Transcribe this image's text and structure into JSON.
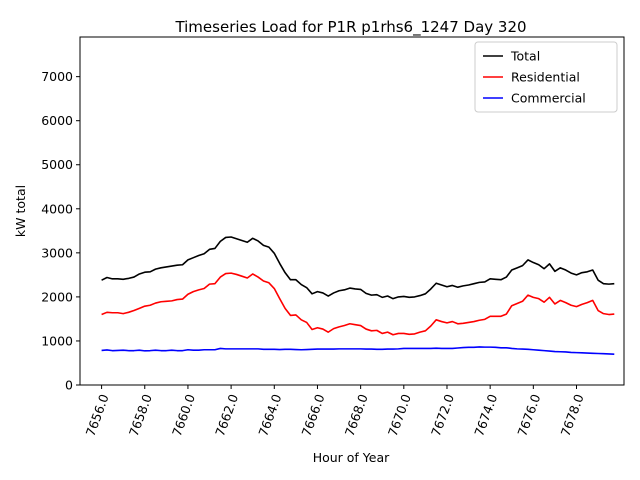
{
  "chart_data": {
    "type": "line",
    "title": "Timeseries Load for P1R p1rhs6_1247  Day 320",
    "xlabel": "Hour of Year",
    "ylabel": "kW total",
    "xlim": [
      7655.0,
      7680.2
    ],
    "ylim": [
      0,
      7900
    ],
    "x_ticks": [
      7656.0,
      7658.0,
      7660.0,
      7662.0,
      7664.0,
      7666.0,
      7668.0,
      7670.0,
      7672.0,
      7674.0,
      7676.0,
      7678.0
    ],
    "x_tick_labels": [
      "7656.0",
      "7658.0",
      "7660.0",
      "7662.0",
      "7664.0",
      "7666.0",
      "7668.0",
      "7670.0",
      "7672.0",
      "7674.0",
      "7676.0",
      "7678.0"
    ],
    "y_ticks": [
      0,
      1000,
      2000,
      3000,
      4000,
      5000,
      6000,
      7000
    ],
    "y_tick_labels": [
      "0",
      "1000",
      "2000",
      "3000",
      "4000",
      "5000",
      "6000",
      "7000"
    ],
    "legend_position": "top-right",
    "x_start": 7656.0,
    "x_step": 0.25,
    "series": [
      {
        "name": "Total",
        "color": "#000000",
        "values": [
          2380,
          2440,
          2410,
          2410,
          2400,
          2420,
          2450,
          2520,
          2560,
          2570,
          2630,
          2660,
          2680,
          2700,
          2720,
          2730,
          2840,
          2890,
          2940,
          2980,
          3080,
          3100,
          3260,
          3350,
          3360,
          3320,
          3280,
          3240,
          3330,
          3270,
          3170,
          3130,
          2990,
          2760,
          2550,
          2390,
          2390,
          2280,
          2210,
          2070,
          2120,
          2090,
          2020,
          2090,
          2140,
          2160,
          2200,
          2180,
          2170,
          2080,
          2040,
          2050,
          1990,
          2020,
          1960,
          2000,
          2010,
          1990,
          2000,
          2030,
          2070,
          2180,
          2310,
          2270,
          2230,
          2260,
          2220,
          2250,
          2270,
          2300,
          2330,
          2340,
          2410,
          2400,
          2390,
          2450,
          2610,
          2660,
          2710,
          2840,
          2780,
          2730,
          2640,
          2750,
          2580,
          2660,
          2610,
          2540,
          2500,
          2550,
          2570,
          2610,
          2380,
          2300,
          2290,
          2300
        ]
      },
      {
        "name": "Residential",
        "color": "#ff0000",
        "values": [
          1600,
          1650,
          1640,
          1640,
          1620,
          1650,
          1690,
          1740,
          1790,
          1810,
          1860,
          1890,
          1900,
          1910,
          1940,
          1950,
          2060,
          2120,
          2160,
          2190,
          2290,
          2300,
          2450,
          2530,
          2540,
          2510,
          2470,
          2430,
          2520,
          2450,
          2360,
          2320,
          2190,
          1960,
          1740,
          1580,
          1590,
          1480,
          1420,
          1260,
          1300,
          1270,
          1200,
          1280,
          1320,
          1350,
          1390,
          1370,
          1350,
          1270,
          1230,
          1240,
          1170,
          1200,
          1140,
          1170,
          1170,
          1150,
          1160,
          1200,
          1230,
          1340,
          1480,
          1440,
          1410,
          1440,
          1390,
          1400,
          1420,
          1440,
          1470,
          1490,
          1560,
          1560,
          1560,
          1610,
          1800,
          1850,
          1900,
          2040,
          1990,
          1960,
          1880,
          1990,
          1840,
          1920,
          1870,
          1810,
          1780,
          1830,
          1870,
          1920,
          1690,
          1620,
          1600,
          1610
        ]
      },
      {
        "name": "Commercial",
        "color": "#0000ff",
        "values": [
          785,
          795,
          780,
          785,
          790,
          780,
          780,
          790,
          775,
          780,
          790,
          780,
          780,
          790,
          780,
          780,
          800,
          790,
          790,
          800,
          800,
          800,
          830,
          820,
          820,
          820,
          820,
          820,
          820,
          820,
          810,
          810,
          810,
          805,
          810,
          810,
          805,
          800,
          805,
          810,
          815,
          815,
          815,
          815,
          820,
          820,
          820,
          820,
          820,
          815,
          815,
          810,
          810,
          815,
          815,
          820,
          830,
          830,
          830,
          830,
          830,
          830,
          835,
          830,
          830,
          830,
          840,
          850,
          855,
          855,
          865,
          860,
          860,
          855,
          845,
          845,
          830,
          820,
          815,
          810,
          800,
          790,
          780,
          770,
          760,
          755,
          750,
          740,
          735,
          730,
          725,
          720,
          715,
          710,
          705,
          700
        ]
      }
    ]
  }
}
